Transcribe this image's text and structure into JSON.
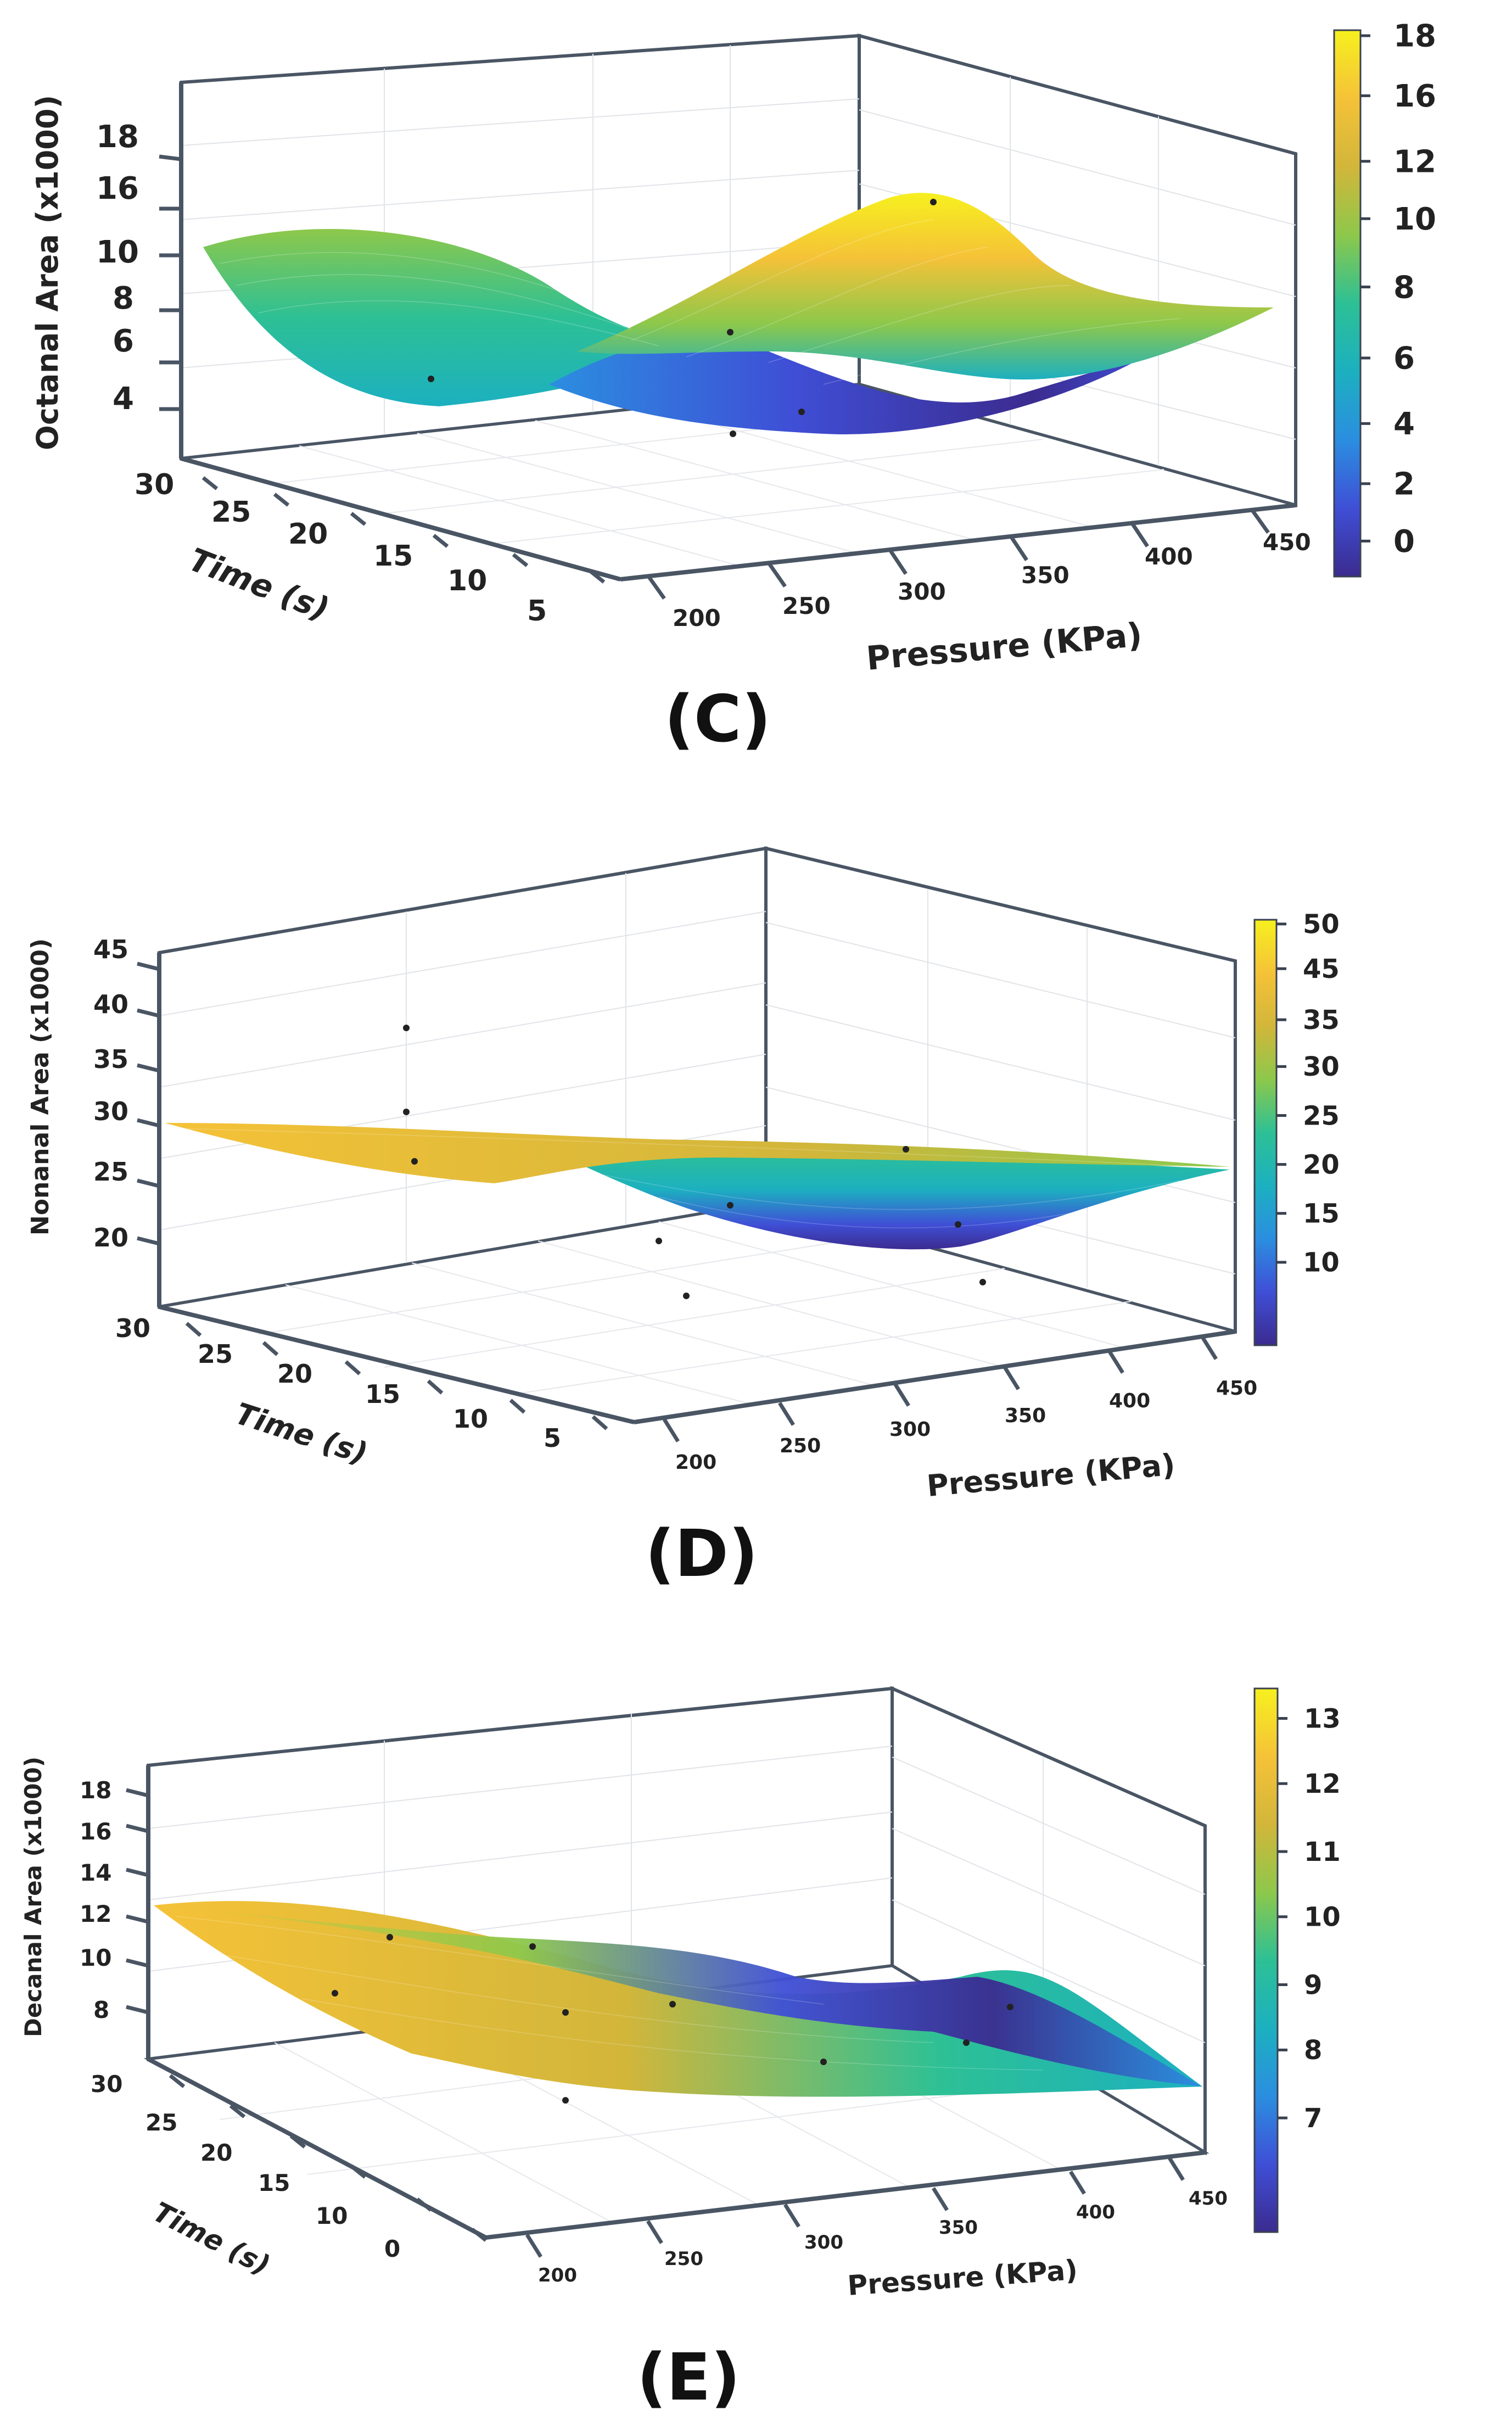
{
  "figure": {
    "colormap": [
      "#3b2b8f",
      "#3f4fd6",
      "#2b8ee0",
      "#1cb0c0",
      "#2dc095",
      "#8dc84b",
      "#d2b63a",
      "#f5c238",
      "#f6f01e"
    ]
  },
  "chart_data": [
    {
      "type": "surface3d",
      "panel_label": "(C)",
      "zlabel": "Octanal Area (x1000)",
      "xlabel": "Pressure (KPa)",
      "ylabel": "Time (s)",
      "x_ticks": [
        "200",
        "250",
        "300",
        "350",
        "400",
        "450"
      ],
      "y_ticks": [
        "30",
        "25",
        "20",
        "15",
        "10",
        "5"
      ],
      "z_ticks": [
        "18",
        "16",
        "10",
        "8",
        "6",
        "4"
      ],
      "colorbar_ticks": [
        "18",
        "16",
        "12",
        "10",
        "8",
        "6",
        "4",
        "2",
        "0"
      ],
      "colorbar_range": [
        0,
        18
      ],
      "surface_profile": [
        [
          200,
          10.2
        ],
        [
          240,
          9.0
        ],
        [
          275,
          5.5
        ],
        [
          300,
          3.8
        ],
        [
          325,
          3.0
        ],
        [
          350,
          5.5
        ],
        [
          375,
          13.0
        ],
        [
          400,
          11.5
        ],
        [
          425,
          9.0
        ],
        [
          450,
          8.6
        ]
      ]
    },
    {
      "type": "surface3d",
      "panel_label": "(D)",
      "zlabel": "Nonanal Area (x1000)",
      "xlabel": "Pressure (KPa)",
      "ylabel": "Time (s)",
      "x_ticks": [
        "200",
        "250",
        "300",
        "350",
        "400",
        "450"
      ],
      "y_ticks": [
        "30",
        "25",
        "20",
        "15",
        "10",
        "5"
      ],
      "z_ticks": [
        "45",
        "40",
        "35",
        "30",
        "25",
        "20"
      ],
      "colorbar_ticks": [
        "50",
        "45",
        "35",
        "30",
        "25",
        "20",
        "15",
        "10"
      ],
      "colorbar_range": [
        8,
        50
      ],
      "surface_profile": [
        [
          200,
          30.0
        ],
        [
          250,
          29.0
        ],
        [
          300,
          28.5
        ],
        [
          340,
          22.0
        ],
        [
          370,
          16.0
        ],
        [
          400,
          16.5
        ],
        [
          425,
          22.0
        ],
        [
          450,
          27.0
        ]
      ]
    },
    {
      "type": "surface3d",
      "panel_label": "(E)",
      "zlabel": "Decanal Area (x1000)",
      "xlabel": "Pressure (KPa)",
      "ylabel": "Time (s)",
      "x_ticks": [
        "200",
        "250",
        "300",
        "350",
        "400",
        "450"
      ],
      "y_ticks": [
        "30",
        "25",
        "20",
        "15",
        "10",
        "0"
      ],
      "z_ticks": [
        "18",
        "16",
        "14",
        "12",
        "10",
        "8"
      ],
      "colorbar_ticks": [
        "13",
        "12",
        "11",
        "10",
        "9",
        "8",
        "7"
      ],
      "colorbar_range": [
        6.2,
        13.8
      ],
      "surface_profile": [
        [
          200,
          13.0
        ],
        [
          250,
          12.0
        ],
        [
          300,
          11.0
        ],
        [
          340,
          9.5
        ],
        [
          375,
          7.0
        ],
        [
          410,
          8.5
        ],
        [
          450,
          9.0
        ]
      ]
    }
  ]
}
